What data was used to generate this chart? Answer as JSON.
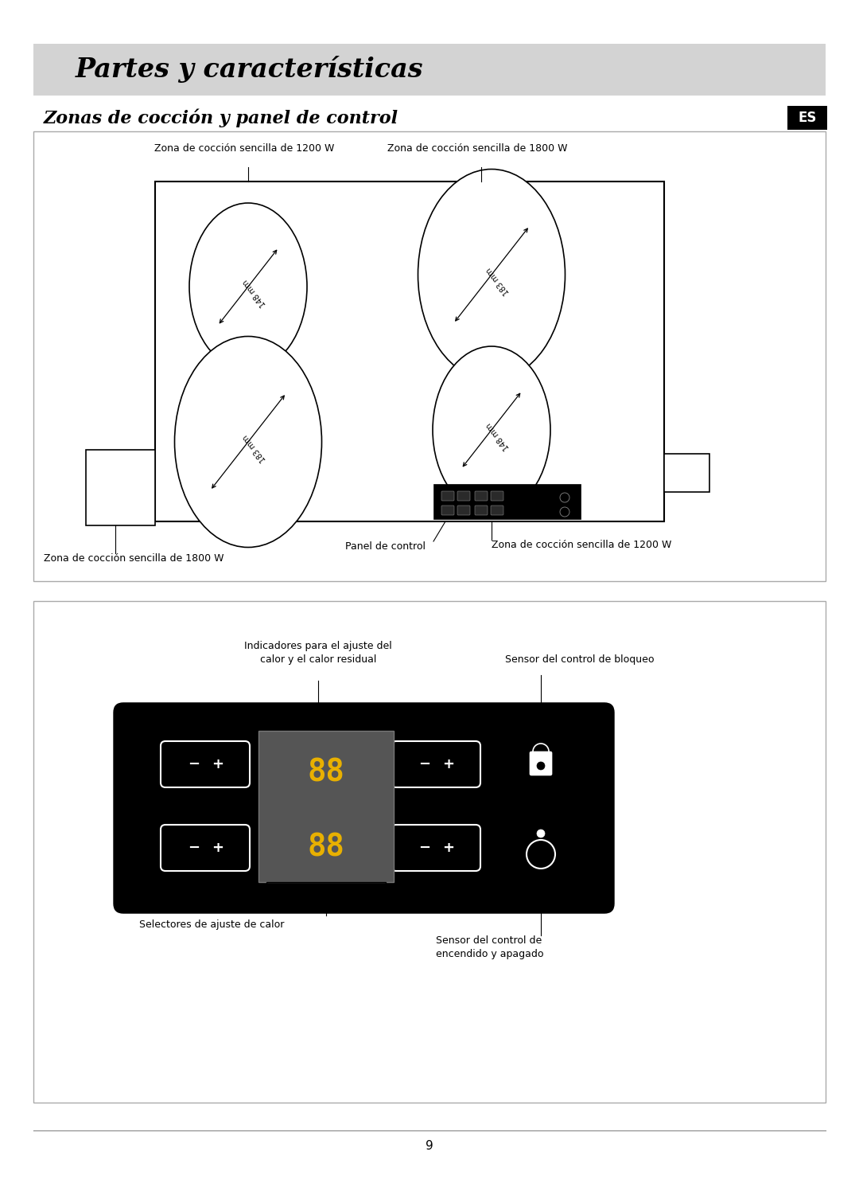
{
  "title_banner": "Partes y características",
  "subtitle": "Zonas de cocción y panel de control",
  "banner_bg": "#d3d3d3",
  "banner_text_color": "#000000",
  "es_label": "ES",
  "box1_labels": {
    "top_left": "Zona de cocción sencilla de 1200 W",
    "top_right": "Zona de cocción sencilla de 1800 W",
    "bottom_left_ext": "Zona de cocción sencilla de 1800 W",
    "bottom_right_label": "Zona de cocción sencilla de 1200 W",
    "panel_label": "Panel de control"
  },
  "box2_labels": {
    "indicator_label": "Indicadores para el ajuste del\ncalor y el calor residual",
    "lock_label": "Sensor del control de bloqueo",
    "heat_selector_label": "Selectores de ajuste de calor",
    "power_label": "Sensor del control de\nencendido y apagado"
  },
  "page_number": "9",
  "bg_color": "#ffffff",
  "text_color": "#000000"
}
